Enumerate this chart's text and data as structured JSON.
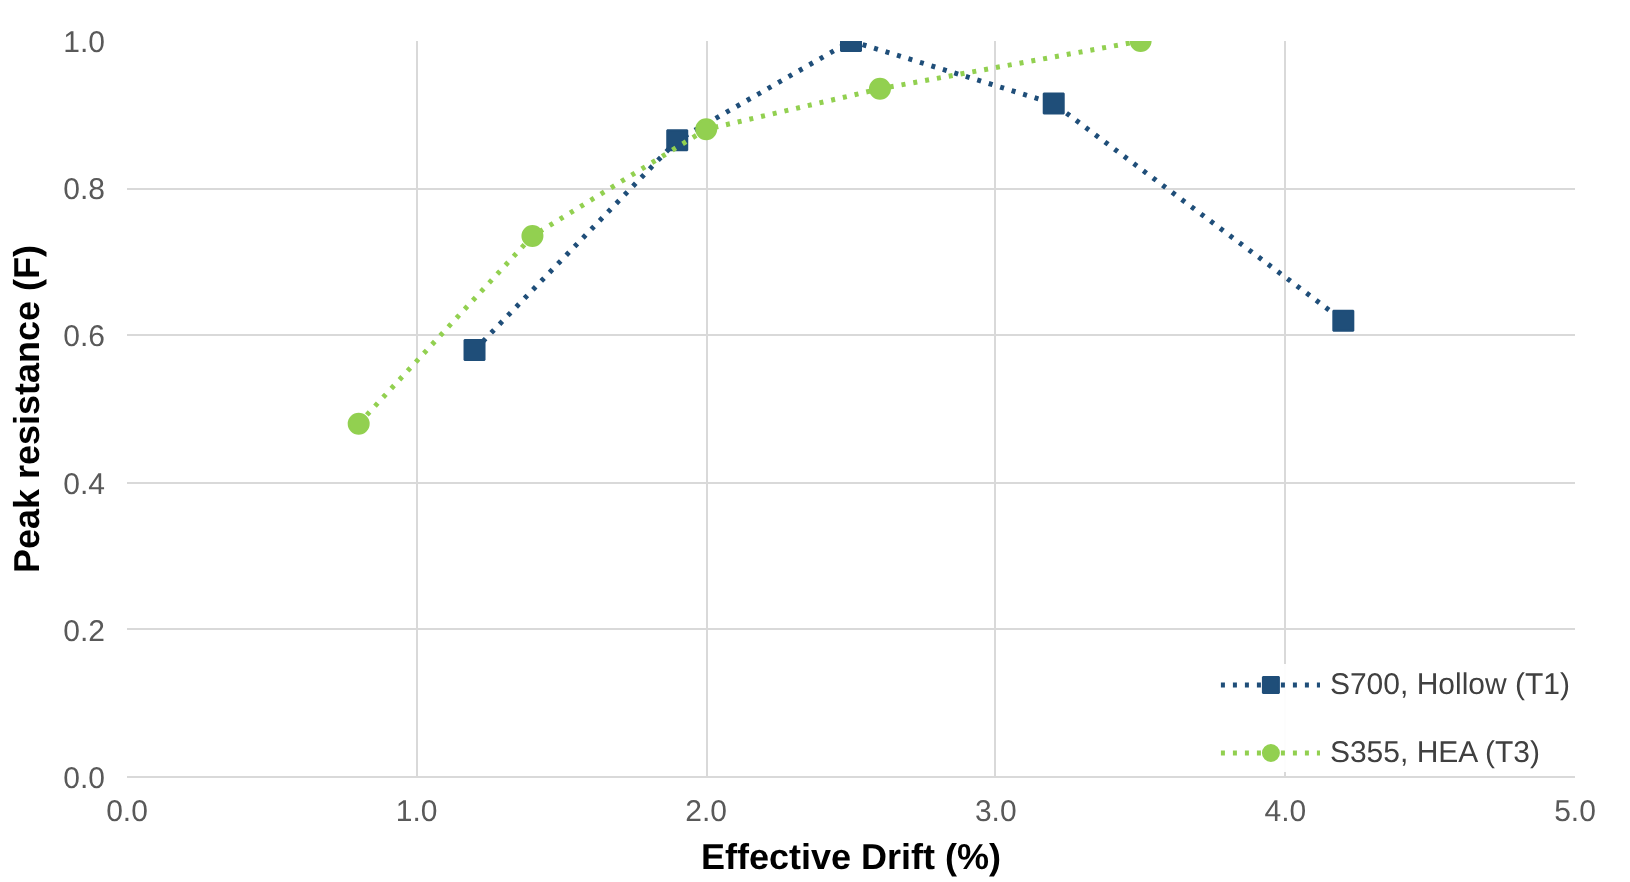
{
  "chart_data": {
    "type": "line",
    "xlabel": "Effective Drift (%)",
    "ylabel": "Peak resistance (F)",
    "xlim": [
      0,
      5
    ],
    "ylim": [
      0,
      1
    ],
    "xticks": [
      {
        "value": 0,
        "label": "0.0"
      },
      {
        "value": 1,
        "label": "1.0"
      },
      {
        "value": 2,
        "label": "2.0"
      },
      {
        "value": 3,
        "label": "3.0"
      },
      {
        "value": 4,
        "label": "4.0"
      },
      {
        "value": 5,
        "label": "5.0"
      }
    ],
    "yticks": [
      {
        "value": 0,
        "label": "0.0"
      },
      {
        "value": 0.2,
        "label": "0.2"
      },
      {
        "value": 0.4,
        "label": "0.4"
      },
      {
        "value": 0.6,
        "label": "0.6"
      },
      {
        "value": 0.8,
        "label": "0.8"
      },
      {
        "value": 1,
        "label": "1.0"
      }
    ],
    "grid": true,
    "legend": "bottom right",
    "line_style": "dotted",
    "series": [
      {
        "name": "S700, Hollow (T1)",
        "color": "#1f4e79",
        "marker": "square",
        "x": [
          1.2,
          1.9,
          2.5,
          3.2,
          4.2
        ],
        "values": [
          0.58,
          0.865,
          1.0,
          0.915,
          0.62
        ]
      },
      {
        "name": "S355, HEA (T3)",
        "color": "#92d050",
        "marker": "circle",
        "x": [
          0.8,
          1.4,
          2.0,
          2.6,
          3.5
        ],
        "values": [
          0.48,
          0.735,
          0.88,
          0.935,
          1.0
        ]
      }
    ]
  }
}
